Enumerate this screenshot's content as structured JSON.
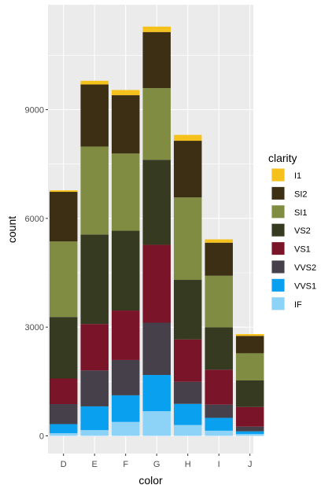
{
  "chart_data": {
    "type": "bar",
    "stacked": true,
    "xlabel": "color",
    "ylabel": "count",
    "categories": [
      "D",
      "E",
      "F",
      "G",
      "H",
      "I",
      "J"
    ],
    "ylim": [
      0,
      11900
    ],
    "yticks": [
      0,
      3000,
      6000,
      9000
    ],
    "ytick_labels": [
      "0",
      "3000",
      "6000",
      "9000"
    ],
    "legend": {
      "title": "clarity",
      "placement": "right"
    },
    "grid": true,
    "series": [
      {
        "name": "IF",
        "color": "#8DD3F8",
        "values": [
          73,
          158,
          385,
          681,
          299,
          143,
          51
        ]
      },
      {
        "name": "VVS1",
        "color": "#0AA0F0",
        "values": [
          252,
          656,
          734,
          999,
          585,
          355,
          74
        ]
      },
      {
        "name": "VVS2",
        "color": "#46404A",
        "values": [
          553,
          991,
          975,
          1443,
          608,
          365,
          131
        ]
      },
      {
        "name": "VS1",
        "color": "#7A1428",
        "values": [
          705,
          1281,
          1364,
          2148,
          1169,
          962,
          542
        ]
      },
      {
        "name": "VS2",
        "color": "#363A20",
        "values": [
          1697,
          2470,
          2201,
          2347,
          1643,
          1169,
          731
        ]
      },
      {
        "name": "SI1",
        "color": "#7F8C42",
        "values": [
          2083,
          2426,
          2131,
          1976,
          2275,
          1424,
          750
        ]
      },
      {
        "name": "SI2",
        "color": "#3D2F13",
        "values": [
          1370,
          1713,
          1609,
          1548,
          1563,
          912,
          479
        ]
      },
      {
        "name": "I1",
        "color": "#F5C11C",
        "values": [
          42,
          102,
          143,
          150,
          162,
          92,
          50
        ]
      }
    ]
  }
}
